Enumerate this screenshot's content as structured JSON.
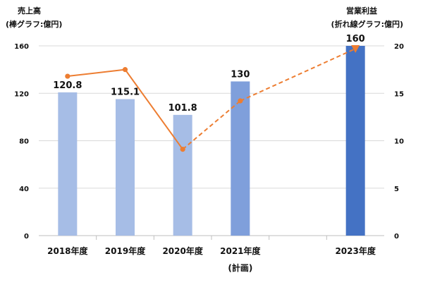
{
  "chart_data": {
    "type": "bar+line",
    "left_axis_title": [
      "売上高",
      "(棒グラフ:億円)"
    ],
    "right_axis_title": [
      "営業利益",
      "(折れ線グラフ:億円)"
    ],
    "categories": [
      [
        "2018年度"
      ],
      [
        "2019年度"
      ],
      [
        "2020年度"
      ],
      [
        "2021年度",
        "(計画)"
      ],
      [
        ""
      ],
      [
        "2023年度"
      ]
    ],
    "bars": {
      "values": [
        120.8,
        115.1,
        101.8,
        130,
        null,
        160
      ],
      "labels": [
        "120.8",
        "115.1",
        "101.8",
        "130",
        "",
        "160"
      ],
      "colors": [
        "#a6bde6",
        "#a6bde6",
        "#a6bde6",
        "#7f9fdb",
        "#7f9fdb",
        "#4472c4"
      ],
      "ylim": [
        0,
        160
      ],
      "yticks": [
        0,
        40,
        80,
        120,
        160
      ]
    },
    "line": {
      "color": "#ed7d31",
      "values": [
        16.8,
        17.5,
        9.1,
        14.2,
        null,
        19.7
      ],
      "solid_segments": [
        [
          0,
          1
        ],
        [
          1,
          2
        ]
      ],
      "dashed_segments": [
        [
          2,
          3
        ],
        [
          3,
          5
        ]
      ],
      "ylim": [
        0,
        20
      ],
      "yticks": [
        0,
        5,
        10,
        15,
        20
      ]
    },
    "grid": true
  }
}
